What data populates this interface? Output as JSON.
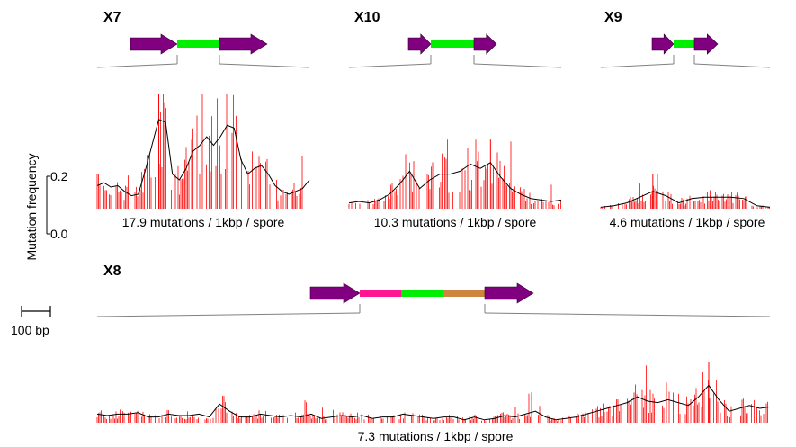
{
  "y_axis": {
    "label": "Mutation frequency",
    "ticks": [
      "0.2",
      "0.0"
    ],
    "range": [
      0,
      0.2
    ]
  },
  "scale_bar": {
    "label": "100 bp",
    "length_bp": 100
  },
  "colors": {
    "arrow": "#800080",
    "spacer_green": "#00ee00",
    "spacer_pink": "#ff1493",
    "spacer_tan": "#cd853f",
    "mutation_bar": "#ff0000",
    "smoothed_line": "#000000",
    "connector": "#808080"
  },
  "chart_data": [
    {
      "type": "bar",
      "title": "X7",
      "subtitle": "17.9 mutations / 1kbp / spore",
      "construct": [
        "arrow",
        "spacer_green",
        "arrow"
      ],
      "peak_frequency": 0.4,
      "smoothed_profile": [
        0.08,
        0.09,
        0.075,
        0.08,
        0.06,
        0.045,
        0.05,
        0.13,
        0.22,
        0.31,
        0.3,
        0.12,
        0.1,
        0.14,
        0.2,
        0.22,
        0.25,
        0.22,
        0.25,
        0.29,
        0.28,
        0.17,
        0.12,
        0.14,
        0.15,
        0.12,
        0.08,
        0.06,
        0.05,
        0.06,
        0.07,
        0.1
      ]
    },
    {
      "type": "bar",
      "title": "X10",
      "subtitle": "10.3 mutations / 1kbp / spore",
      "construct": [
        "arrow",
        "spacer_green",
        "arrow"
      ],
      "peak_frequency": 0.24,
      "smoothed_profile": [
        0.02,
        0.025,
        0.02,
        0.03,
        0.05,
        0.085,
        0.13,
        0.07,
        0.1,
        0.12,
        0.12,
        0.13,
        0.155,
        0.14,
        0.16,
        0.11,
        0.07,
        0.05,
        0.035,
        0.03,
        0.025,
        0.03
      ]
    },
    {
      "type": "bar",
      "title": "X9",
      "subtitle": "4.6 mutations / 1kbp / spore",
      "construct": [
        "arrow",
        "spacer_green",
        "arrow"
      ],
      "peak_frequency": 0.12,
      "smoothed_profile": [
        0.005,
        0.01,
        0.02,
        0.04,
        0.06,
        0.045,
        0.02,
        0.035,
        0.04,
        0.04,
        0.04,
        0.035,
        0.01,
        0.005
      ]
    },
    {
      "type": "bar",
      "title": "X8",
      "subtitle": "7.3 mutations / 1kbp / spore",
      "construct": [
        "arrow",
        "spacer_pink",
        "spacer_green",
        "spacer_tan",
        "arrow"
      ],
      "peak_frequency": 0.21,
      "smoothed_profile": [
        0.03,
        0.025,
        0.03,
        0.03,
        0.035,
        0.02,
        0.02,
        0.03,
        0.025,
        0.025,
        0.03,
        0.02,
        0.065,
        0.04,
        0.02,
        0.02,
        0.03,
        0.025,
        0.02,
        0.025,
        0.02,
        0.03,
        0.015,
        0.02,
        0.025,
        0.02,
        0.025,
        0.015,
        0.02,
        0.02,
        0.03,
        0.025,
        0.02,
        0.015,
        0.02,
        0.02,
        0.01,
        0.02,
        0.01,
        0.015,
        0.025,
        0.02,
        0.03,
        0.04,
        0.02,
        0.01,
        0.015,
        0.02,
        0.03,
        0.04,
        0.05,
        0.06,
        0.07,
        0.09,
        0.075,
        0.07,
        0.08,
        0.07,
        0.06,
        0.09,
        0.13,
        0.08,
        0.04,
        0.05,
        0.06,
        0.05,
        0.055
      ]
    }
  ]
}
